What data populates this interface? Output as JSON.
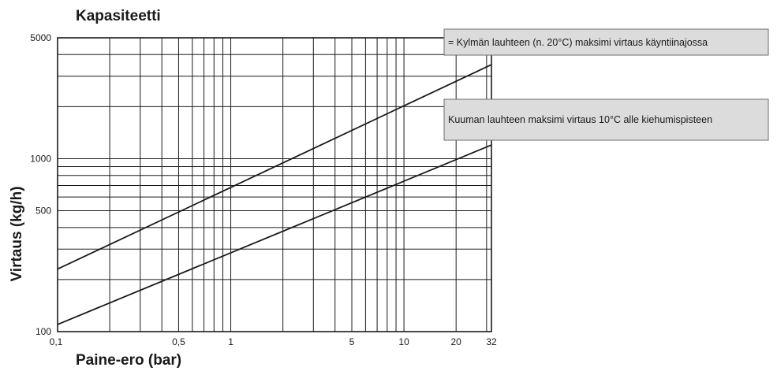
{
  "chart_data": {
    "type": "line",
    "title": "Kapasiteetti",
    "xlabel": "Paine-ero (bar)",
    "ylabel": "Virtaus (kg/h)",
    "x_scale": "log",
    "y_scale": "log",
    "xlim": [
      0.1,
      32
    ],
    "ylim": [
      100,
      5000
    ],
    "x_tick_labels": [
      {
        "value": 0.1,
        "label": "0,1"
      },
      {
        "value": 0.5,
        "label": "0,5"
      },
      {
        "value": 1,
        "label": "1"
      },
      {
        "value": 5,
        "label": "5"
      },
      {
        "value": 10,
        "label": "10"
      },
      {
        "value": 20,
        "label": "20"
      },
      {
        "value": 32,
        "label": "32"
      }
    ],
    "y_tick_labels": [
      {
        "value": 100,
        "label": "100"
      },
      {
        "value": 500,
        "label": "500"
      },
      {
        "value": 1000,
        "label": "1000"
      },
      {
        "value": 5000,
        "label": "5000"
      }
    ],
    "grid": true,
    "series": [
      {
        "name": "= Kylmän lauhteen (n. 20°C) maksimi virtaus käyntiinajossa",
        "x": [
          0.1,
          32
        ],
        "y": [
          230,
          3500
        ]
      },
      {
        "name": "Kuuman lauhteen maksimi virtaus 10°C alle kiehumispisteen",
        "x": [
          0.1,
          32
        ],
        "y": [
          110,
          1200
        ]
      }
    ],
    "legend": "top-right",
    "colors": {
      "line": "#1a1a1a",
      "grid": "#1a1a1a",
      "legend_box": "#dcdcdc",
      "legend_border": "#6e6e6e"
    }
  }
}
